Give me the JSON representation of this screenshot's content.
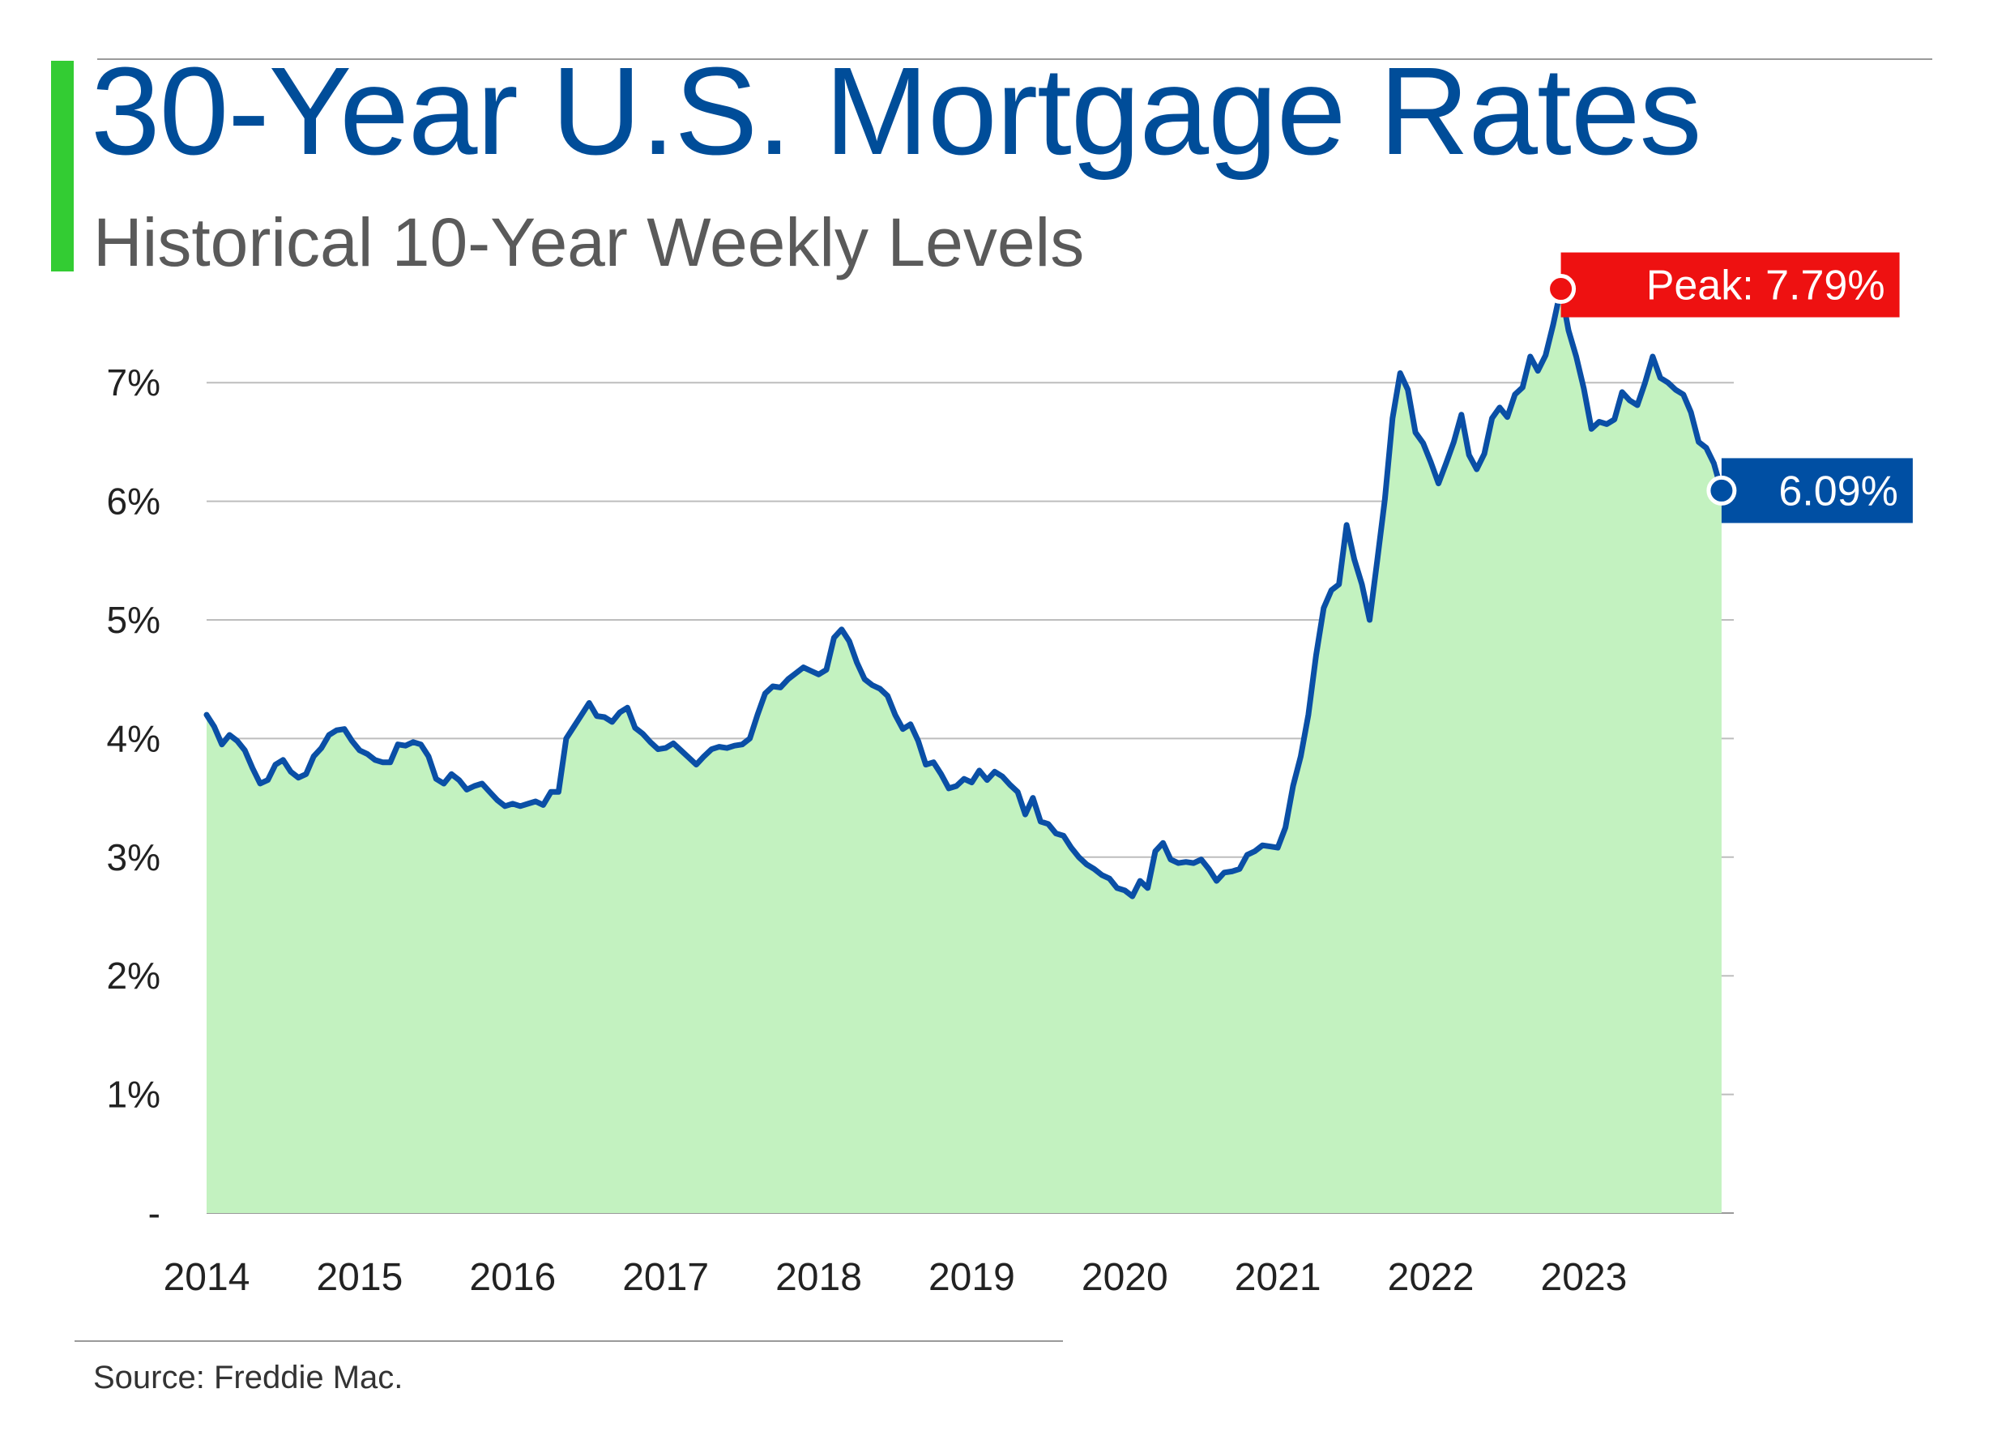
{
  "header": {
    "title": "30-Year U.S. Mortgage Rates",
    "subtitle": "Historical 10-Year Weekly Levels"
  },
  "footer": {
    "source": "Source: Freddie Mac."
  },
  "colors": {
    "accent": "#33cc33",
    "line": "#0a4fa6",
    "area": "#c3f2c0",
    "peak_callout": "#ee1111",
    "latest_callout": "#004fa3",
    "grid": "#bdbdbd"
  },
  "chart_data": {
    "type": "area",
    "title": "30-Year U.S. Mortgage Rates",
    "subtitle": "Historical 10-Year Weekly Levels",
    "xlabel": "",
    "ylabel": "",
    "x_ticks": [
      "2014",
      "2015",
      "2016",
      "2017",
      "2018",
      "2019",
      "2020",
      "2021",
      "2022",
      "2023"
    ],
    "y_ticks": [
      {
        "value": 0,
        "label": "-"
      },
      {
        "value": 1,
        "label": "1%"
      },
      {
        "value": 2,
        "label": "2%"
      },
      {
        "value": 3,
        "label": "3%"
      },
      {
        "value": 4,
        "label": "4%"
      },
      {
        "value": 5,
        "label": "5%"
      },
      {
        "value": 6,
        "label": "6%"
      },
      {
        "value": 7,
        "label": "7%"
      }
    ],
    "xlim": [
      2014.0,
      2023.98
    ],
    "ylim": [
      0,
      7.9
    ],
    "grid": true,
    "series": [
      {
        "points": [
          [
            2014.0,
            4.2
          ],
          [
            2014.05,
            4.1
          ],
          [
            2014.1,
            3.95
          ],
          [
            2014.15,
            4.03
          ],
          [
            2014.2,
            3.98
          ],
          [
            2014.25,
            3.9
          ],
          [
            2014.3,
            3.75
          ],
          [
            2014.35,
            3.62
          ],
          [
            2014.4,
            3.65
          ],
          [
            2014.45,
            3.78
          ],
          [
            2014.5,
            3.82
          ],
          [
            2014.55,
            3.72
          ],
          [
            2014.6,
            3.67
          ],
          [
            2014.65,
            3.7
          ],
          [
            2014.7,
            3.85
          ],
          [
            2014.75,
            3.92
          ],
          [
            2014.8,
            4.03
          ],
          [
            2014.85,
            4.07
          ],
          [
            2014.9,
            4.08
          ],
          [
            2014.95,
            3.98
          ],
          [
            2015.0,
            3.9
          ],
          [
            2015.05,
            3.87
          ],
          [
            2015.1,
            3.82
          ],
          [
            2015.15,
            3.8
          ],
          [
            2015.2,
            3.8
          ],
          [
            2015.25,
            3.95
          ],
          [
            2015.3,
            3.94
          ],
          [
            2015.35,
            3.97
          ],
          [
            2015.4,
            3.95
          ],
          [
            2015.45,
            3.85
          ],
          [
            2015.5,
            3.66
          ],
          [
            2015.55,
            3.62
          ],
          [
            2015.6,
            3.7
          ],
          [
            2015.65,
            3.65
          ],
          [
            2015.7,
            3.57
          ],
          [
            2015.75,
            3.6
          ],
          [
            2015.8,
            3.62
          ],
          [
            2015.85,
            3.55
          ],
          [
            2015.9,
            3.48
          ],
          [
            2015.95,
            3.43
          ],
          [
            2016.0,
            3.45
          ],
          [
            2016.05,
            3.43
          ],
          [
            2016.1,
            3.45
          ],
          [
            2016.15,
            3.47
          ],
          [
            2016.2,
            3.44
          ],
          [
            2016.25,
            3.55
          ],
          [
            2016.3,
            3.55
          ],
          [
            2016.35,
            4.0
          ],
          [
            2016.4,
            4.1
          ],
          [
            2016.45,
            4.2
          ],
          [
            2016.5,
            4.3
          ],
          [
            2016.55,
            4.19
          ],
          [
            2016.6,
            4.18
          ],
          [
            2016.65,
            4.14
          ],
          [
            2016.7,
            4.22
          ],
          [
            2016.75,
            4.26
          ],
          [
            2016.8,
            4.09
          ],
          [
            2016.85,
            4.04
          ],
          [
            2016.9,
            3.97
          ],
          [
            2016.95,
            3.91
          ],
          [
            2017.0,
            3.92
          ],
          [
            2017.05,
            3.96
          ],
          [
            2017.1,
            3.9
          ],
          [
            2017.15,
            3.84
          ],
          [
            2017.2,
            3.78
          ],
          [
            2017.25,
            3.85
          ],
          [
            2017.3,
            3.91
          ],
          [
            2017.35,
            3.93
          ],
          [
            2017.4,
            3.92
          ],
          [
            2017.45,
            3.94
          ],
          [
            2017.5,
            3.95
          ],
          [
            2017.55,
            4.0
          ],
          [
            2017.6,
            4.2
          ],
          [
            2017.65,
            4.38
          ],
          [
            2017.7,
            4.44
          ],
          [
            2017.75,
            4.43
          ],
          [
            2017.8,
            4.5
          ],
          [
            2017.85,
            4.55
          ],
          [
            2017.9,
            4.6
          ],
          [
            2017.95,
            4.57
          ],
          [
            2018.0,
            4.54
          ],
          [
            2018.05,
            4.58
          ],
          [
            2018.1,
            4.85
          ],
          [
            2018.15,
            4.92
          ],
          [
            2018.2,
            4.82
          ],
          [
            2018.25,
            4.64
          ],
          [
            2018.3,
            4.5
          ],
          [
            2018.35,
            4.45
          ],
          [
            2018.4,
            4.42
          ],
          [
            2018.45,
            4.36
          ],
          [
            2018.5,
            4.2
          ],
          [
            2018.55,
            4.08
          ],
          [
            2018.6,
            4.12
          ],
          [
            2018.65,
            3.98
          ],
          [
            2018.7,
            3.78
          ],
          [
            2018.75,
            3.8
          ],
          [
            2018.8,
            3.7
          ],
          [
            2018.85,
            3.58
          ],
          [
            2018.9,
            3.6
          ],
          [
            2018.95,
            3.66
          ],
          [
            2019.0,
            3.63
          ],
          [
            2019.05,
            3.73
          ],
          [
            2019.1,
            3.65
          ],
          [
            2019.15,
            3.72
          ],
          [
            2019.2,
            3.68
          ],
          [
            2019.25,
            3.61
          ],
          [
            2019.3,
            3.55
          ],
          [
            2019.35,
            3.36
          ],
          [
            2019.4,
            3.5
          ],
          [
            2019.45,
            3.3
          ],
          [
            2019.5,
            3.28
          ],
          [
            2019.55,
            3.2
          ],
          [
            2019.6,
            3.18
          ],
          [
            2019.65,
            3.08
          ],
          [
            2019.7,
            3.0
          ],
          [
            2019.75,
            2.94
          ],
          [
            2019.8,
            2.9
          ],
          [
            2019.85,
            2.85
          ],
          [
            2019.9,
            2.82
          ],
          [
            2019.95,
            2.74
          ],
          [
            2020.0,
            2.72
          ],
          [
            2020.05,
            2.67
          ],
          [
            2020.1,
            2.8
          ],
          [
            2020.15,
            2.74
          ],
          [
            2020.2,
            3.05
          ],
          [
            2020.25,
            3.12
          ],
          [
            2020.3,
            2.98
          ],
          [
            2020.35,
            2.95
          ],
          [
            2020.4,
            2.96
          ],
          [
            2020.45,
            2.95
          ],
          [
            2020.5,
            2.98
          ],
          [
            2020.55,
            2.9
          ],
          [
            2020.6,
            2.8
          ],
          [
            2020.65,
            2.87
          ],
          [
            2020.7,
            2.88
          ],
          [
            2020.75,
            2.9
          ],
          [
            2020.8,
            3.02
          ],
          [
            2020.85,
            3.05
          ],
          [
            2020.9,
            3.1
          ],
          [
            2020.95,
            3.09
          ],
          [
            2021.0,
            3.08
          ],
          [
            2021.05,
            3.25
          ],
          [
            2021.1,
            3.6
          ],
          [
            2021.15,
            3.85
          ],
          [
            2021.2,
            4.2
          ],
          [
            2021.25,
            4.7
          ],
          [
            2021.3,
            5.1
          ],
          [
            2021.35,
            5.25
          ],
          [
            2021.4,
            5.3
          ],
          [
            2021.45,
            5.8
          ],
          [
            2021.5,
            5.51
          ],
          [
            2021.55,
            5.3
          ],
          [
            2021.6,
            5.0
          ],
          [
            2021.65,
            5.5
          ],
          [
            2021.7,
            6.02
          ],
          [
            2021.75,
            6.7
          ],
          [
            2021.8,
            7.08
          ],
          [
            2021.85,
            6.94
          ],
          [
            2021.9,
            6.58
          ],
          [
            2021.95,
            6.49
          ],
          [
            2022.0,
            6.33
          ],
          [
            2022.05,
            6.15
          ],
          [
            2022.1,
            6.32
          ],
          [
            2022.15,
            6.5
          ],
          [
            2022.2,
            6.73
          ],
          [
            2022.25,
            6.39
          ],
          [
            2022.3,
            6.27
          ],
          [
            2022.35,
            6.4
          ],
          [
            2022.4,
            6.7
          ],
          [
            2022.45,
            6.79
          ],
          [
            2022.5,
            6.71
          ],
          [
            2022.55,
            6.9
          ],
          [
            2022.6,
            6.96
          ],
          [
            2022.65,
            7.22
          ],
          [
            2022.7,
            7.1
          ],
          [
            2022.75,
            7.23
          ],
          [
            2022.8,
            7.49
          ],
          [
            2022.85,
            7.79
          ],
          [
            2022.9,
            7.44
          ],
          [
            2022.95,
            7.22
          ],
          [
            2023.0,
            6.95
          ],
          [
            2023.05,
            6.61
          ],
          [
            2023.1,
            6.67
          ],
          [
            2023.15,
            6.65
          ],
          [
            2023.2,
            6.69
          ],
          [
            2023.25,
            6.92
          ],
          [
            2023.3,
            6.85
          ],
          [
            2023.35,
            6.81
          ],
          [
            2023.4,
            7.0
          ],
          [
            2023.45,
            7.22
          ],
          [
            2023.5,
            7.04
          ],
          [
            2023.55,
            7.0
          ],
          [
            2023.6,
            6.94
          ],
          [
            2023.65,
            6.9
          ],
          [
            2023.7,
            6.75
          ],
          [
            2023.75,
            6.5
          ],
          [
            2023.8,
            6.45
          ],
          [
            2023.85,
            6.32
          ],
          [
            2023.9,
            6.09
          ]
        ]
      }
    ],
    "annotations": [
      {
        "kind": "peak",
        "x": 2022.85,
        "y": 7.79,
        "label": "Peak: 7.79%"
      },
      {
        "kind": "latest",
        "x": 2023.9,
        "y": 6.09,
        "label": "6.09%"
      }
    ]
  }
}
